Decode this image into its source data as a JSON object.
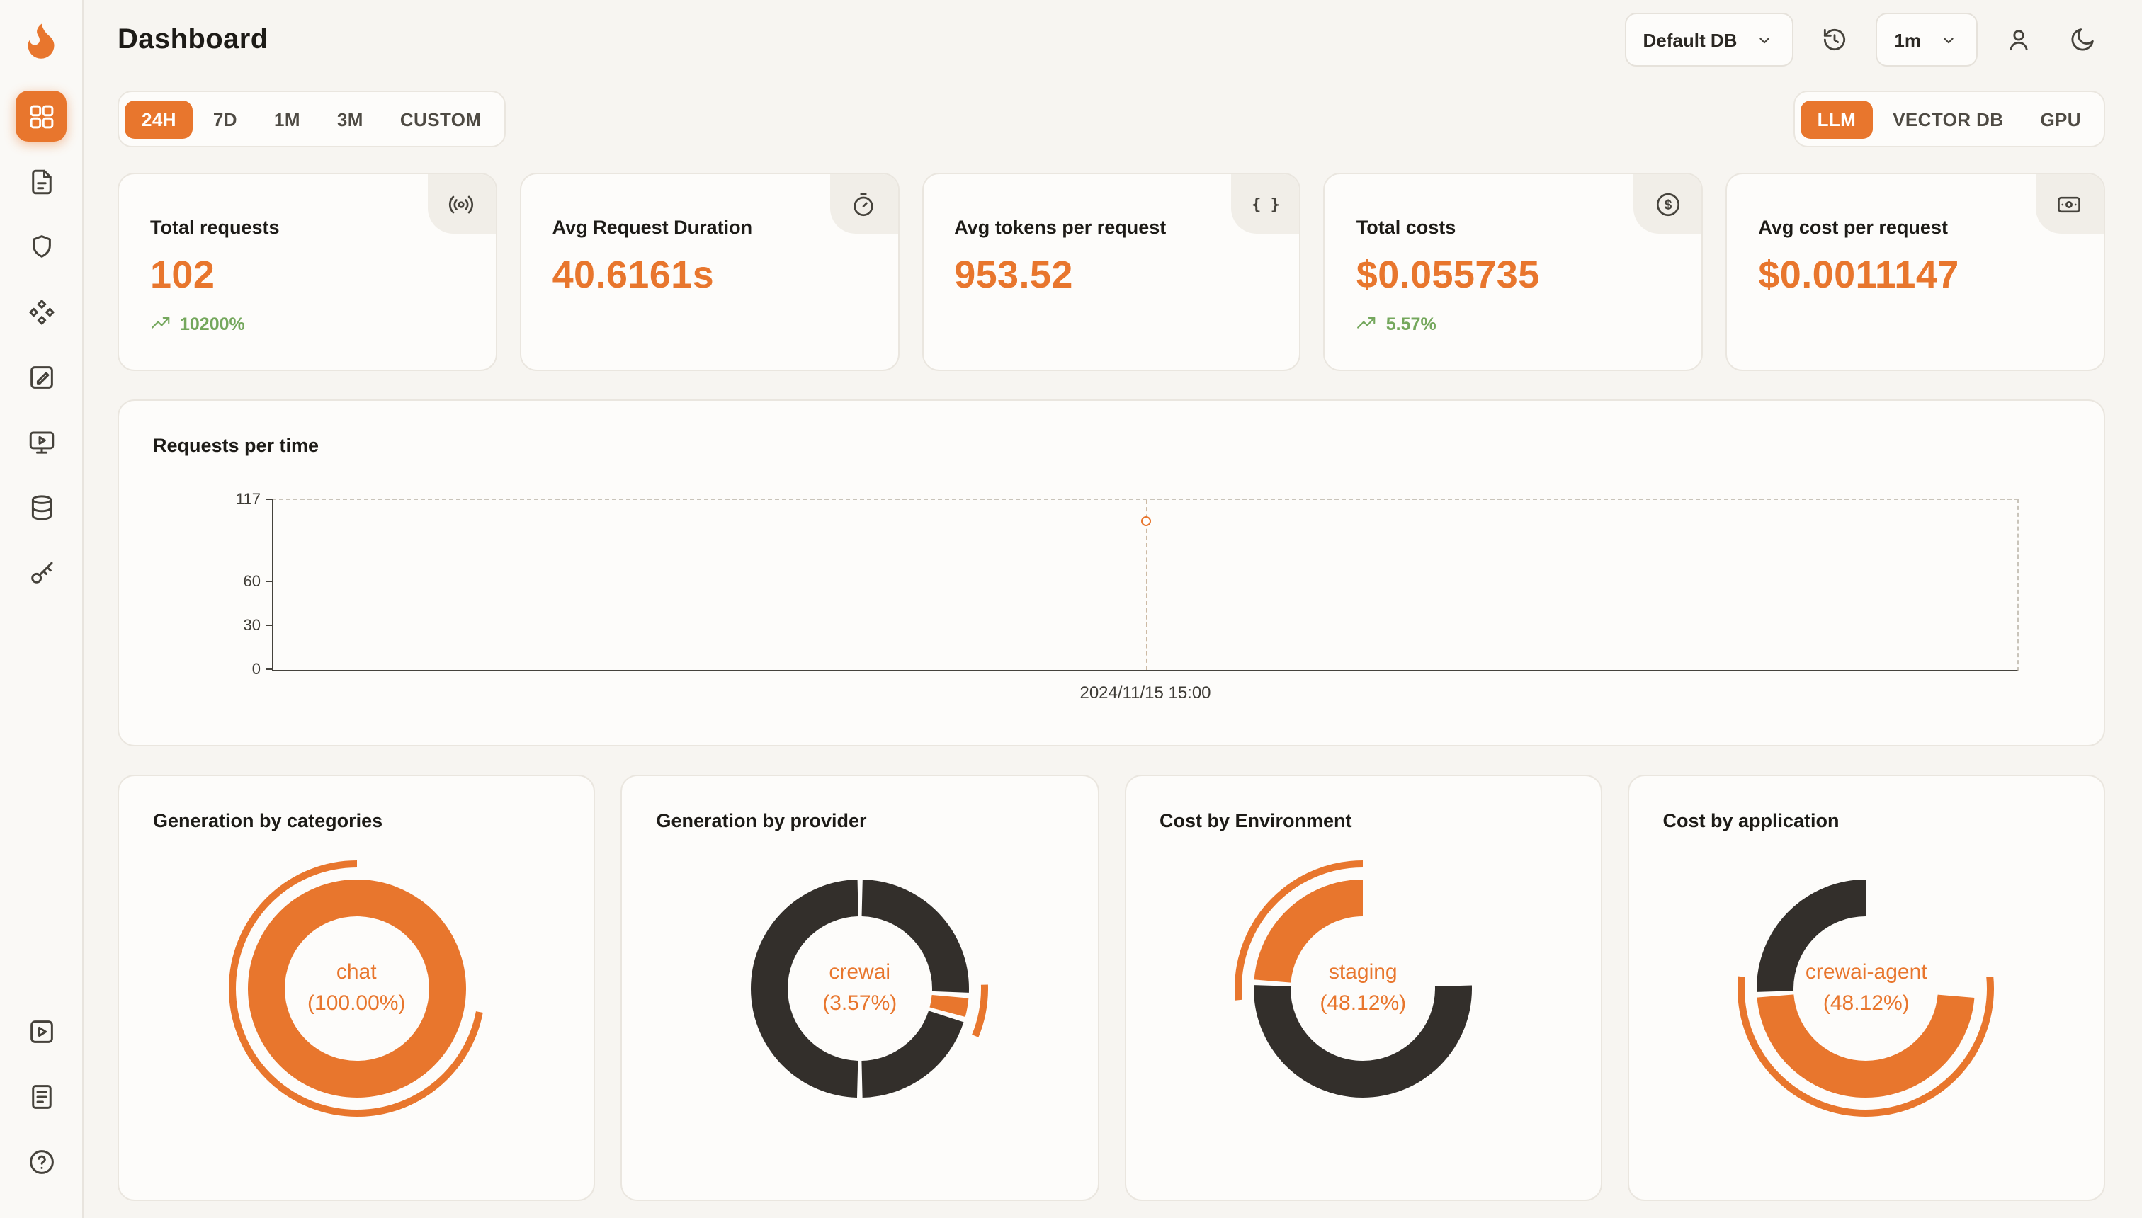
{
  "app": {
    "title": "Dashboard"
  },
  "header": {
    "db_select": {
      "value": "Default DB"
    },
    "interval_select": {
      "value": "1m"
    },
    "icons": [
      "history-icon",
      "user-icon",
      "moon-icon"
    ]
  },
  "sidebar": {
    "active": "dashboard",
    "items": [
      "dashboard-icon",
      "traces-icon",
      "shield-icon",
      "integrations-icon",
      "evaluations-icon",
      "playground-icon",
      "database-icon",
      "api-keys-icon"
    ],
    "bottom_items": [
      "getting-started-icon",
      "docs-icon",
      "help-icon"
    ]
  },
  "time_tabs": {
    "items": [
      "24H",
      "7D",
      "1M",
      "3M",
      "CUSTOM"
    ],
    "active": "24H"
  },
  "source_tabs": {
    "items": [
      "LLM",
      "VECTOR DB",
      "GPU"
    ],
    "active": "LLM"
  },
  "stats": [
    {
      "label": "Total requests",
      "value": "102",
      "trend": "10200%",
      "icon": "radio-icon"
    },
    {
      "label": "Avg Request Duration",
      "value": "40.6161s",
      "icon": "timer-icon"
    },
    {
      "label": "Avg tokens per request",
      "value": "953.52",
      "icon": "braces-icon"
    },
    {
      "label": "Total costs",
      "value": "$0.055735",
      "trend": "5.57%",
      "icon": "dollar-icon"
    },
    {
      "label": "Avg cost per request",
      "value": "$0.0011147",
      "icon": "card-icon"
    }
  ],
  "colors": {
    "accent": "#e8762d",
    "dark": "#332f2b",
    "green": "#74a75c"
  },
  "chart_data": [
    {
      "type": "line",
      "title": "Requests per time",
      "x": [
        "2024/11/15 15:00"
      ],
      "series": [
        {
          "name": "requests",
          "values": [
            102
          ]
        }
      ],
      "ylim": [
        0,
        117
      ],
      "yticks": [
        0,
        30,
        60,
        117
      ],
      "grid": "dashed-frame",
      "point_style": "hollow-circle",
      "point_color": "#e8762d"
    },
    {
      "type": "pie",
      "title": "Generation by categories",
      "center_label": "chat",
      "center_value": "(100.00%)",
      "slices": [
        {
          "name": "chat",
          "pct": 100.0,
          "color": "#e8762d",
          "from": 0.0,
          "to": 1.0
        }
      ],
      "outer_arc": {
        "color": "#e8762d",
        "from": 0.28,
        "to": 1.22
      }
    },
    {
      "type": "pie",
      "title": "Generation by provider",
      "center_label": "crewai",
      "center_value": "(3.57%)",
      "slices": [
        {
          "name": "other",
          "pct": 26.0,
          "color": "#332f2b",
          "from": 0.0,
          "to": 0.26
        },
        {
          "name": "crewai",
          "pct": 3.57,
          "color": "#e8762d",
          "from": 0.26,
          "to": 0.2957
        },
        {
          "name": "other",
          "pct": 20.43,
          "color": "#332f2b",
          "from": 0.2957,
          "to": 0.5
        },
        {
          "name": "other",
          "pct": 50.0,
          "color": "#332f2b",
          "from": 0.5,
          "to": 1.0
        }
      ],
      "outer_arc": {
        "color": "#e8762d",
        "from": 0.245,
        "to": 0.312
      }
    },
    {
      "type": "pie",
      "title": "Cost by Environment",
      "center_label": "staging",
      "center_value": "(48.12%)",
      "slices": [
        {
          "name": "staging",
          "pct": 48.12,
          "color": "#e8762d",
          "from": 0.7588,
          "to": 1.2412
        },
        {
          "name": "other",
          "pct": 51.88,
          "color": "#332f2b",
          "from": 0.2412,
          "to": 0.7588
        }
      ],
      "outer_arc": {
        "color": "#e8762d",
        "from": 0.735,
        "to": 1.265
      }
    },
    {
      "type": "pie",
      "title": "Cost by application",
      "center_label": "crewai-agent",
      "center_value": "(48.12%)",
      "slices": [
        {
          "name": "crewai-agent",
          "pct": 48.12,
          "color": "#e8762d",
          "from": 0.2594,
          "to": 0.7406
        },
        {
          "name": "other",
          "pct": 51.88,
          "color": "#332f2b",
          "from": 0.7406,
          "to": 1.2594
        }
      ],
      "outer_arc": {
        "color": "#e8762d",
        "from": 0.235,
        "to": 0.765
      }
    }
  ]
}
